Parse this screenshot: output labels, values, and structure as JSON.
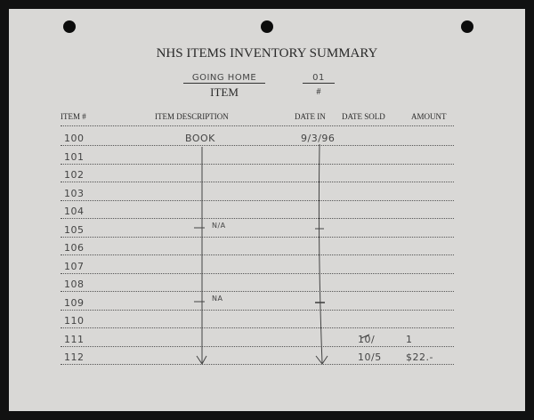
{
  "title": "NHS ITEMS INVENTORY SUMMARY",
  "item_name": {
    "value": "GOING HOME",
    "label": "ITEM"
  },
  "item_number": {
    "value": "01",
    "label": "#"
  },
  "columns": [
    "ITEM #",
    "ITEM DESCRIPTION",
    "DATE IN",
    "DATE SOLD",
    "AMOUNT"
  ],
  "rows": [
    {
      "item": "100",
      "description": "BOOK",
      "date_in": "9/3/96",
      "date_sold": "",
      "amount": ""
    },
    {
      "item": "101"
    },
    {
      "item": "102"
    },
    {
      "item": "103"
    },
    {
      "item": "104"
    },
    {
      "item": "105",
      "description": "N/A",
      "date_in": "-"
    },
    {
      "item": "106"
    },
    {
      "item": "107"
    },
    {
      "item": "108"
    },
    {
      "item": "109",
      "description": "NA",
      "date_in": "-"
    },
    {
      "item": "110"
    },
    {
      "item": "111",
      "date_sold": "10/",
      "amount": "1"
    },
    {
      "item": "112",
      "date_sold": "10/5",
      "amount": "$22.-"
    }
  ]
}
